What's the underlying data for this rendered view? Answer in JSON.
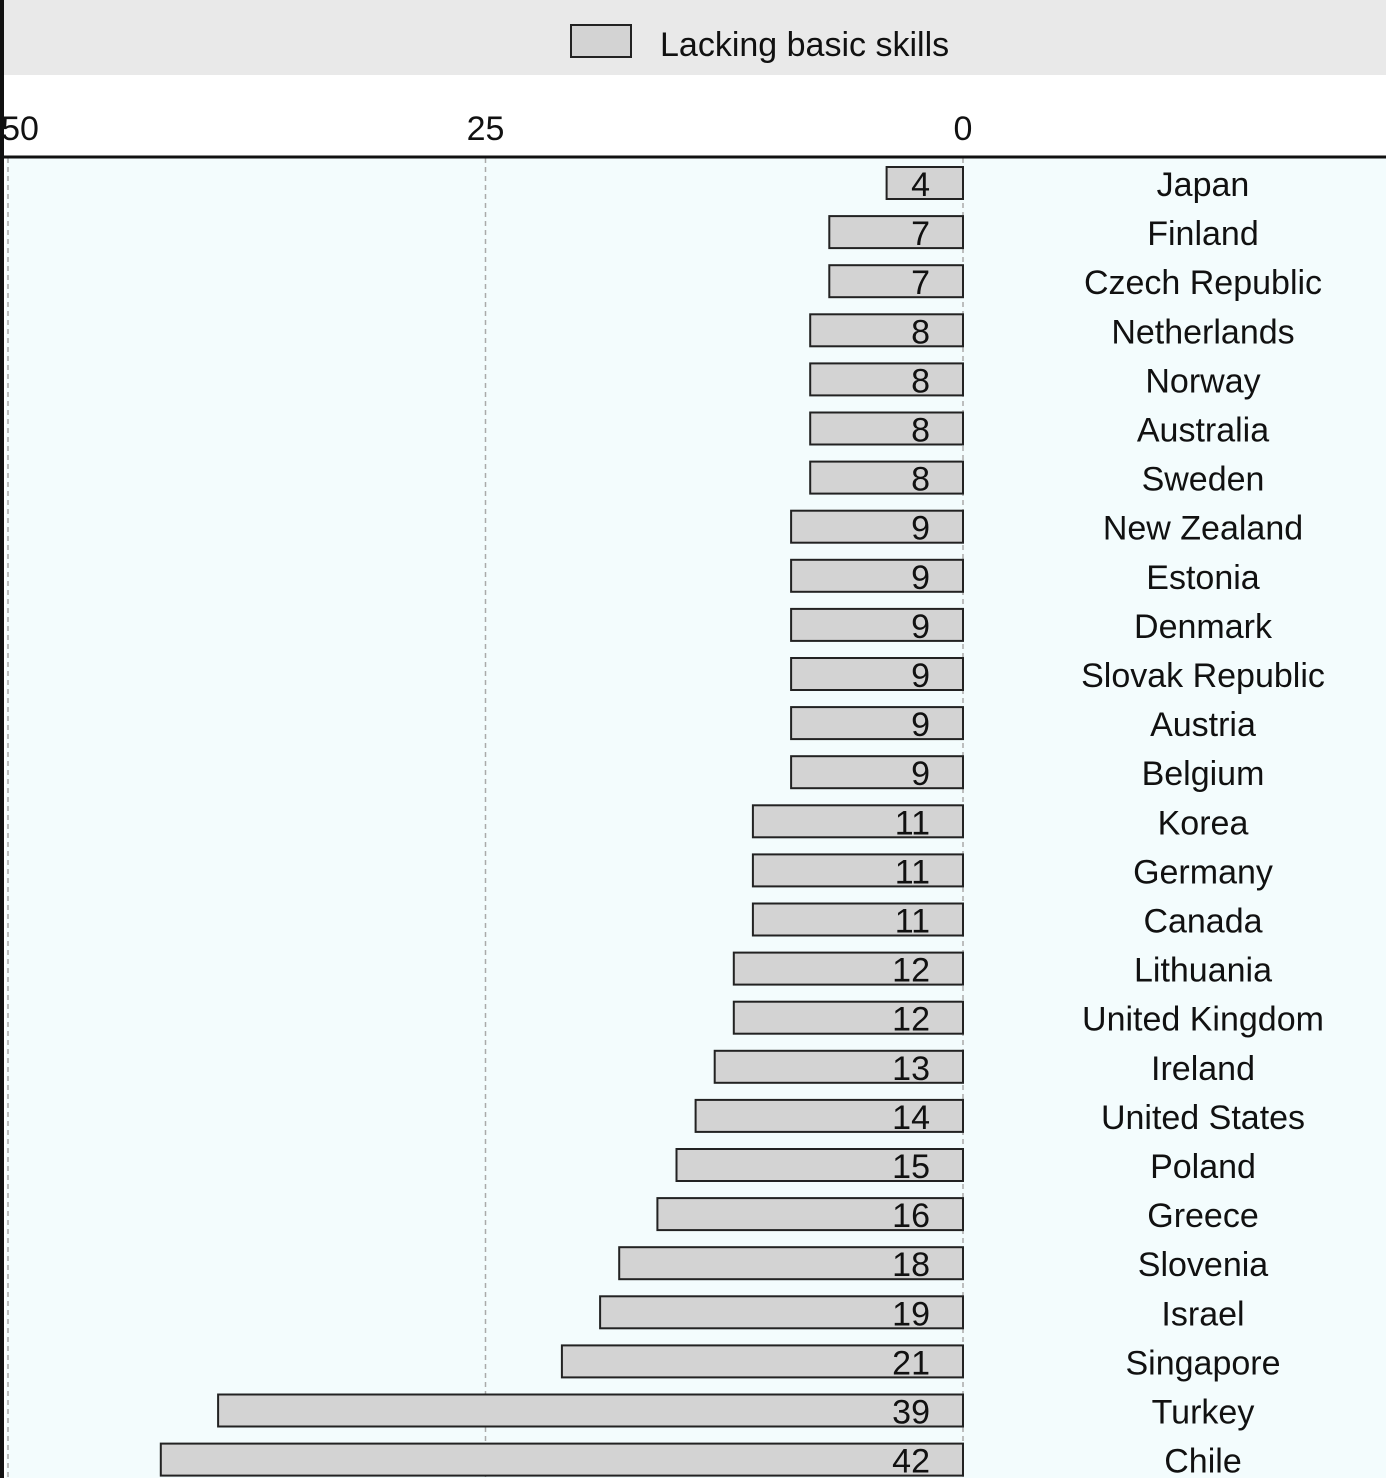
{
  "chart_data": {
    "type": "bar",
    "orientation": "horizontal",
    "direction": "right-to-left",
    "legend": {
      "position": "top",
      "entries": [
        "Lacking basic skills"
      ]
    },
    "xlim": [
      0,
      50
    ],
    "x_ticks": [
      "50",
      "25",
      "0"
    ],
    "grid": true,
    "categories": [
      "Japan",
      "Finland",
      "Czech Republic",
      "Netherlands",
      "Norway",
      "Australia",
      "Sweden",
      "New Zealand",
      "Estonia",
      "Denmark",
      "Slovak Republic",
      "Austria",
      "Belgium",
      "Korea",
      "Germany",
      "Canada",
      "Lithuania",
      "United Kingdom",
      "Ireland",
      "United States",
      "Poland",
      "Greece",
      "Slovenia",
      "Israel",
      "Singapore",
      "Turkey",
      "Chile"
    ],
    "series": [
      {
        "name": "Lacking basic skills",
        "color": "#d3d3d3",
        "values": [
          4,
          7,
          7,
          8,
          8,
          8,
          8,
          9,
          9,
          9,
          9,
          9,
          9,
          11,
          11,
          11,
          12,
          12,
          13,
          14,
          15,
          16,
          18,
          19,
          21,
          39,
          42
        ]
      }
    ],
    "colors": {
      "plot_background": "#f3fcfd",
      "legend_background": "#e9e9e9",
      "bar_fill": "#d3d3d3"
    }
  }
}
